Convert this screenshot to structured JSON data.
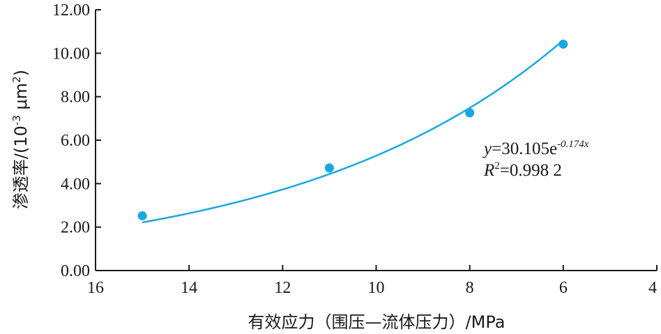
{
  "chart_data": {
    "type": "scatter",
    "title": "",
    "xlabel": "有效应力（围压—流体压力）/MPa",
    "ylabel_main": "渗透率/(10",
    "ylabel_exp": "-3",
    "ylabel_unit": " μm",
    "ylabel_unit_exp": "2",
    "ylabel_close": ")",
    "x_reversed": true,
    "xlim": [
      16,
      4
    ],
    "ylim": [
      0,
      12
    ],
    "x_ticks": [
      16,
      14,
      12,
      10,
      8,
      6,
      4
    ],
    "x_tick_labels": [
      "16",
      "14",
      "12",
      "10",
      "8",
      "6",
      "4"
    ],
    "y_ticks": [
      0,
      2,
      4,
      6,
      8,
      10,
      12
    ],
    "y_tick_labels": [
      "0.00",
      "2.00",
      "4.00",
      "6.00",
      "8.00",
      "10.00",
      "12.00"
    ],
    "series": [
      {
        "x": [
          15,
          11,
          8,
          6
        ],
        "y": [
          2.52,
          4.72,
          7.26,
          10.42
        ]
      }
    ],
    "fit": {
      "a": 30.105,
      "b": -0.174,
      "x_range": [
        15,
        6
      ],
      "color": "#1ba6e0"
    },
    "annotation": {
      "eq_y": "y",
      "eq_rest": "=30.105e",
      "eq_exp": "-0.174x",
      "r2_r": "R",
      "r2_sup": "2",
      "r2_rest": "=0.998 2"
    },
    "grid": false,
    "point_color": "#1ba6e0"
  }
}
